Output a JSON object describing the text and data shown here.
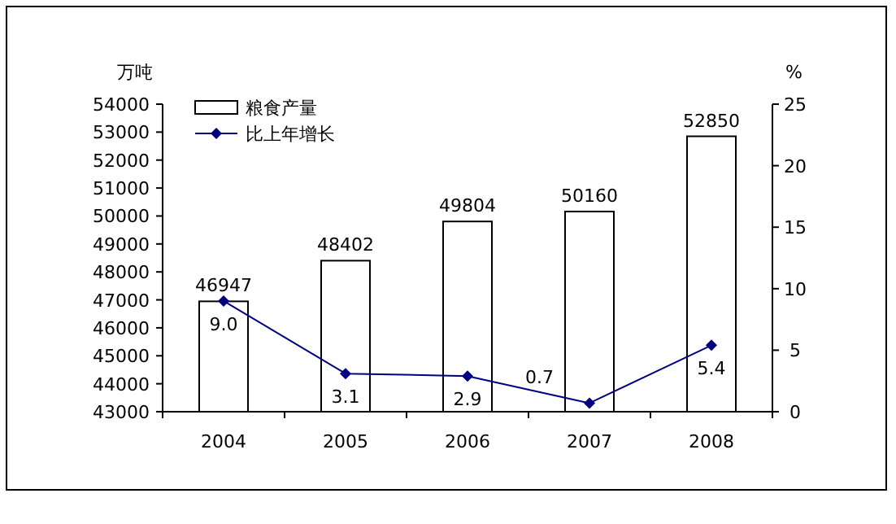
{
  "chart_data": {
    "type": "bar",
    "categories": [
      "2004",
      "2005",
      "2006",
      "2007",
      "2008"
    ],
    "ylabel": "万吨",
    "y2label": "%",
    "ylim": [
      43000,
      54000
    ],
    "yticks": [
      43000,
      44000,
      45000,
      46000,
      47000,
      48000,
      49000,
      50000,
      51000,
      52000,
      53000,
      54000
    ],
    "y2lim": [
      0,
      25
    ],
    "y2ticks": [
      0,
      5,
      10,
      15,
      20,
      25
    ],
    "legend": "top left",
    "data_labels": true,
    "series": [
      {
        "name": "粮食产量",
        "color": "#ffffff",
        "values": [
          46947,
          48402,
          49804,
          50160,
          52850
        ]
      },
      {
        "name": "比上年增长",
        "type": "line",
        "axis": "y2",
        "color": "#000080",
        "marker": "diamond",
        "values": [
          9.0,
          3.1,
          2.9,
          0.7,
          5.4
        ],
        "value_labels": [
          "9.0",
          "3.1",
          "2.9",
          "0.7",
          "5.4"
        ]
      }
    ]
  }
}
